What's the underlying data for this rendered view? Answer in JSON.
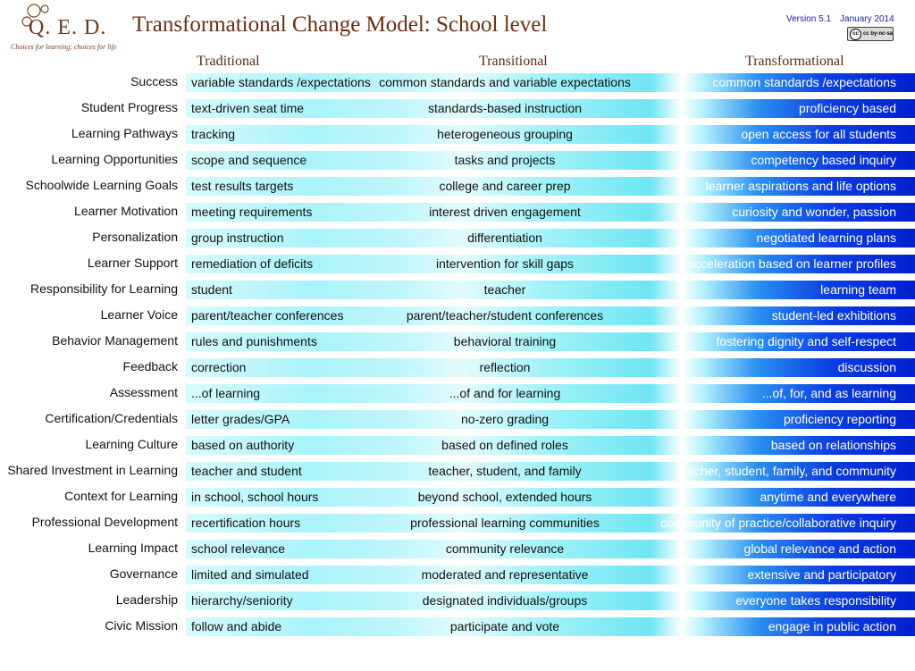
{
  "logo": {
    "name": "Q. E. D.",
    "tagline": "Choices for learning; choices for life"
  },
  "title": "Transformational Change Model: School level",
  "version": {
    "label": "Version 5.1",
    "date": "January 2014"
  },
  "license_badge": "cc by-nc-sa",
  "columns": [
    "Traditional",
    "Transitional",
    "Transformational"
  ],
  "rows": [
    {
      "label": "Success",
      "traditional": "variable standards /expectations",
      "transitional": "common standards and variable expectations",
      "transformational": "common standards /expectations"
    },
    {
      "label": "Student Progress",
      "traditional": "text-driven seat time",
      "transitional": "standards-based instruction",
      "transformational": "proficiency based"
    },
    {
      "label": "Learning Pathways",
      "traditional": "tracking",
      "transitional": "heterogeneous grouping",
      "transformational": "open access for all students"
    },
    {
      "label": "Learning Opportunities",
      "traditional": "scope and sequence",
      "transitional": "tasks and projects",
      "transformational": "competency based inquiry"
    },
    {
      "label": "Schoolwide Learning Goals",
      "traditional": "test results targets",
      "transitional": "college and career prep",
      "transformational": "learner aspirations and life options"
    },
    {
      "label": "Learner Motivation",
      "traditional": "meeting requirements",
      "transitional": "interest driven engagement",
      "transformational": "curiosity and wonder, passion"
    },
    {
      "label": "Personalization",
      "traditional": "group instruction",
      "transitional": "differentiation",
      "transformational": "negotiated learning plans"
    },
    {
      "label": "Learner Support",
      "traditional": "remediation of deficits",
      "transitional": "intervention for skill gaps",
      "transformational": "acceleration based on learner profiles"
    },
    {
      "label": "Responsibility for Learning",
      "traditional": "student",
      "transitional": "teacher",
      "transformational": "learning team"
    },
    {
      "label": "Learner Voice",
      "traditional": "parent/teacher conferences",
      "transitional": "parent/teacher/student conferences",
      "transformational": "student-led exhibitions"
    },
    {
      "label": "Behavior Management",
      "traditional": "rules and punishments",
      "transitional": "behavioral training",
      "transformational": "fostering dignity and self-respect"
    },
    {
      "label": "Feedback",
      "traditional": "correction",
      "transitional": "reflection",
      "transformational": "discussion"
    },
    {
      "label": "Assessment",
      "traditional": "...of learning",
      "transitional": "...of and for learning",
      "transformational": "...of, for, and as learning"
    },
    {
      "label": "Certification/Credentials",
      "traditional": "letter grades/GPA",
      "transitional": "no-zero grading",
      "transformational": "proficiency reporting"
    },
    {
      "label": "Learning Culture",
      "traditional": "based on authority",
      "transitional": "based on  defined roles",
      "transformational": "based on relationships"
    },
    {
      "label": "Shared Investment in Learning",
      "traditional": "teacher and student",
      "transitional": "teacher, student, and family",
      "transformational": "teacher, student, family, and community"
    },
    {
      "label": "Context for Learning",
      "traditional": "in school, school hours",
      "transitional": "beyond school, extended hours",
      "transformational": "anytime and everywhere"
    },
    {
      "label": "Professional Development",
      "traditional": "recertification hours",
      "transitional": "professional learning communities",
      "transformational": "community of practice/collaborative inquiry"
    },
    {
      "label": "Learning Impact",
      "traditional": "school relevance",
      "transitional": "community relevance",
      "transformational": "global relevance and action"
    },
    {
      "label": "Governance",
      "traditional": "limited and simulated",
      "transitional": "moderated and representative",
      "transformational": "extensive and participatory"
    },
    {
      "label": "Leadership",
      "traditional": "hierarchy/seniority",
      "transitional": "designated individuals/groups",
      "transformational": "everyone takes responsibility"
    },
    {
      "label": "Civic Mission",
      "traditional": "follow and abide",
      "transitional": "participate and vote",
      "transformational": "engage in public action"
    }
  ]
}
